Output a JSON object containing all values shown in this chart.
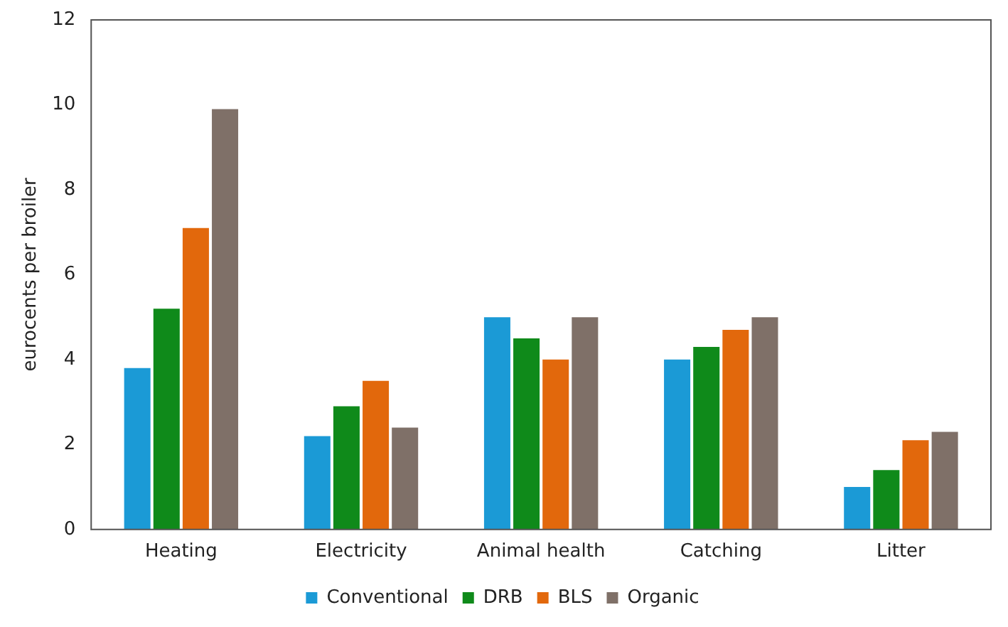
{
  "chart_data": {
    "type": "bar",
    "ylabel": "eurocents per broiler",
    "categories": [
      "Heating",
      "Electricity",
      "Animal health",
      "Catching",
      "Litter"
    ],
    "series": [
      {
        "name": "Conventional",
        "color": "#1b9ad6",
        "values": [
          3.8,
          2.2,
          5.0,
          4.0,
          1.0
        ]
      },
      {
        "name": "DRB",
        "color": "#0f8a1a",
        "values": [
          5.2,
          2.9,
          4.5,
          4.3,
          1.4
        ]
      },
      {
        "name": "BLS",
        "color": "#e2680c",
        "values": [
          7.1,
          3.5,
          4.0,
          4.7,
          2.1
        ]
      },
      {
        "name": "Organic",
        "color": "#7f7068",
        "values": [
          9.9,
          2.4,
          5.0,
          5.0,
          2.3
        ]
      }
    ],
    "ylim": [
      0,
      12
    ],
    "yticks": [
      0,
      2,
      4,
      6,
      8,
      10,
      12
    ],
    "grid": false,
    "legend": "bottom"
  }
}
